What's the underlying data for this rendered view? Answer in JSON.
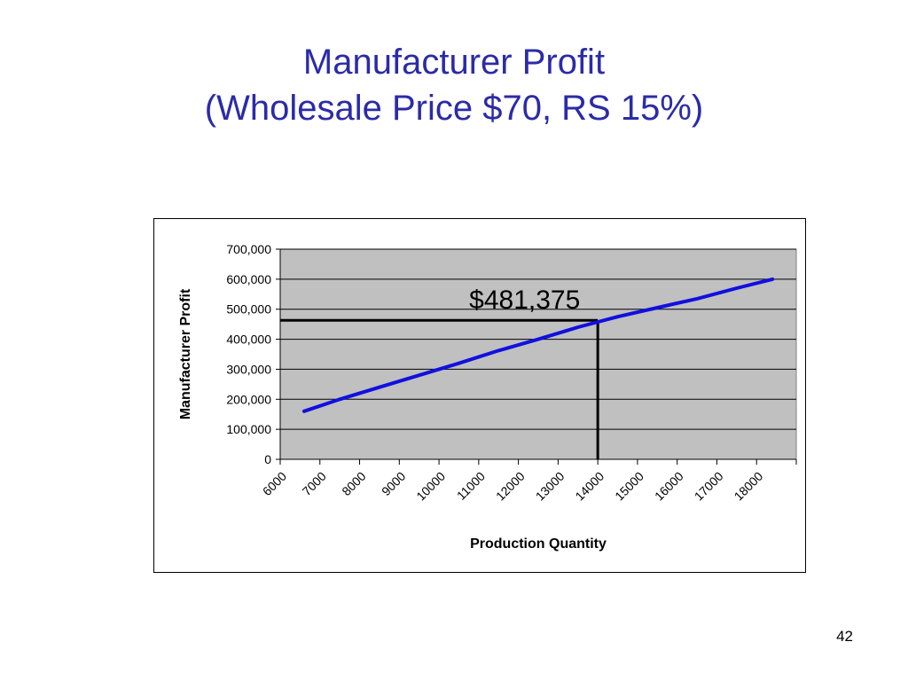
{
  "slide": {
    "title_line1": "Manufacturer Profit",
    "title_line2": "(Wholesale Price $70, RS 15%)",
    "page_number": "42"
  },
  "chart_data": {
    "type": "line",
    "title": "",
    "xlabel": "Production Quantity",
    "ylabel": "Manufacturer Profit",
    "x_categories": [
      "6000",
      "7000",
      "8000",
      "9000",
      "10000",
      "11000",
      "12000",
      "13000",
      "14000",
      "15000",
      "16000",
      "17000",
      "18000"
    ],
    "xlim": [
      6000,
      19000
    ],
    "ylim": [
      0,
      700000
    ],
    "y_ticks": [
      0,
      100000,
      200000,
      300000,
      400000,
      500000,
      600000,
      700000
    ],
    "y_tick_labels": [
      "0",
      "100,000",
      "200,000",
      "300,000",
      "400,000",
      "500,000",
      "600,000",
      "700,000"
    ],
    "grid": "horizontal",
    "plot_background": "#c0c0c0",
    "series": [
      {
        "color": "#1010e0",
        "x": [
          6600,
          7500,
          8500,
          9500,
          10500,
          11500,
          12500,
          13500,
          14500,
          15500,
          16500,
          17500,
          18400
        ],
        "y": [
          160000,
          200000,
          240000,
          280000,
          320000,
          362000,
          400000,
          440000,
          475000,
          505000,
          535000,
          570000,
          600000
        ]
      }
    ],
    "annotation": {
      "label": "$481,375",
      "x": 14000,
      "y": 463000,
      "line_color": "#000000"
    }
  }
}
